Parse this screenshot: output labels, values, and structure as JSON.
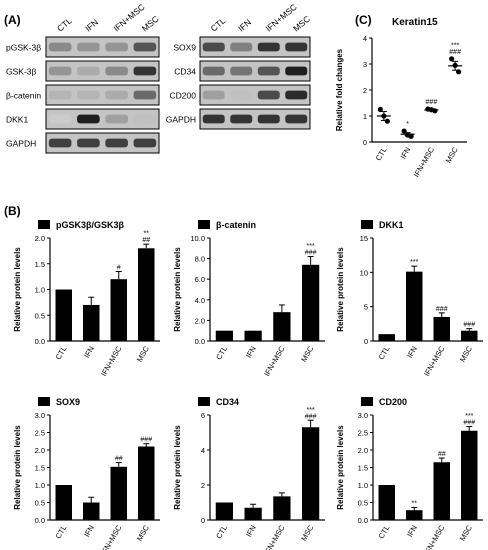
{
  "panel_labels": {
    "A": "(A)",
    "B": "(B)",
    "C": "(C)"
  },
  "blot_columns": [
    "CTL",
    "IFN",
    "IFN+MSC",
    "MSC"
  ],
  "blot_left": {
    "rows": [
      {
        "label": "pGSK-3β",
        "intensity": [
          0.45,
          0.4,
          0.4,
          0.7
        ]
      },
      {
        "label": "GSK-3β",
        "intensity": [
          0.4,
          0.3,
          0.45,
          0.85
        ]
      },
      {
        "label": "β-catenin",
        "intensity": [
          0.25,
          0.25,
          0.3,
          0.6
        ]
      },
      {
        "label": "DKK1",
        "intensity": [
          0.15,
          0.95,
          0.35,
          0.2
        ]
      },
      {
        "label": "GAPDH",
        "intensity": [
          0.8,
          0.8,
          0.8,
          0.8
        ]
      }
    ]
  },
  "blot_right": {
    "rows": [
      {
        "label": "SOX9",
        "intensity": [
          0.75,
          0.5,
          0.85,
          0.85
        ]
      },
      {
        "label": "CD34",
        "intensity": [
          0.6,
          0.55,
          0.7,
          0.95
        ]
      },
      {
        "label": "CD200",
        "intensity": [
          0.35,
          0.2,
          0.75,
          0.9
        ]
      },
      {
        "label": "GAPDH",
        "intensity": [
          0.85,
          0.85,
          0.85,
          0.85
        ]
      }
    ]
  },
  "chart_data": [
    {
      "id": "keratin15",
      "type": "scatter",
      "title": "Keratin15",
      "ylabel": "Relative fold changes",
      "categories": [
        "CTL",
        "IFN",
        "IFN+MSC",
        "MSC"
      ],
      "ylim": [
        0,
        4
      ],
      "yticks": [
        0.0,
        1.0,
        2.0,
        3.0,
        4.0
      ],
      "tick_labels": [
        "0",
        "1",
        "2",
        "3",
        "4"
      ],
      "means": [
        1.0,
        0.3,
        1.23,
        2.93
      ],
      "errors": [
        0.17,
        0.06,
        0.04,
        0.17
      ],
      "points": [
        [
          1.25,
          1.0,
          0.8
        ],
        [
          0.42,
          0.27,
          0.22
        ],
        [
          1.27,
          1.24,
          1.2
        ],
        [
          3.2,
          2.95,
          2.7
        ]
      ],
      "annotations": [
        "",
        "*",
        "###",
        "***\n###"
      ]
    },
    {
      "id": "pgsk",
      "type": "bar",
      "title": "pGSK3β/GSK3β",
      "ylabel": "Relative protein levels",
      "categories": [
        "CTL",
        "IFN",
        "IFN+MSC",
        "MSC"
      ],
      "values": [
        1.0,
        0.7,
        1.2,
        1.8
      ],
      "errors": [
        0,
        0.15,
        0.15,
        0.08
      ],
      "ylim": [
        0,
        2.0
      ],
      "yticks": [
        0.0,
        0.5,
        1.0,
        1.5,
        2.0
      ],
      "tick_labels": [
        "0.0",
        "0.5",
        "1.0",
        "1.5",
        "2.0"
      ],
      "annotations": [
        "",
        "",
        "#",
        "**\n##"
      ]
    },
    {
      "id": "bcat",
      "type": "bar",
      "title": "β-catenin",
      "ylabel": "Relative protein levels",
      "categories": [
        "CTL",
        "IFN",
        "IFN+MSC",
        "MSC"
      ],
      "values": [
        1.0,
        1.0,
        2.8,
        7.4
      ],
      "errors": [
        0,
        0,
        0.7,
        0.8
      ],
      "ylim": [
        0,
        10.0
      ],
      "yticks": [
        0,
        2,
        4,
        6,
        8,
        10
      ],
      "tick_labels": [
        "0.0",
        "2.0",
        "4.0",
        "6.0",
        "8.0",
        "10.0"
      ],
      "annotations": [
        "",
        "",
        "",
        "***\n###"
      ]
    },
    {
      "id": "dkk1",
      "type": "bar",
      "title": "DKK1",
      "ylabel": "Relative protein levels",
      "categories": [
        "CTL",
        "IFN",
        "IFN+MSC",
        "MSC"
      ],
      "values": [
        1.0,
        10.1,
        3.5,
        1.5
      ],
      "errors": [
        0,
        0.8,
        0.6,
        0.3
      ],
      "ylim": [
        0,
        15
      ],
      "yticks": [
        0,
        5,
        10,
        15
      ],
      "tick_labels": [
        "0",
        "5",
        "10",
        "15"
      ],
      "annotations": [
        "",
        "***",
        "###",
        "###"
      ]
    },
    {
      "id": "sox9",
      "type": "bar",
      "title": "SOX9",
      "ylabel": "Relative protein levels",
      "categories": [
        "CTL",
        "IFN",
        "IFN+MSC",
        "MSC"
      ],
      "values": [
        1.0,
        0.5,
        1.52,
        2.1
      ],
      "errors": [
        0,
        0.15,
        0.12,
        0.08
      ],
      "ylim": [
        0,
        3.0
      ],
      "yticks": [
        0,
        0.5,
        1.0,
        1.5,
        2.0,
        2.5,
        3.0
      ],
      "tick_labels": [
        "0.0",
        "0.5",
        "1.0",
        "1.5",
        "2.0",
        "2.5",
        "3.0"
      ],
      "annotations": [
        "",
        "",
        "##",
        "###"
      ]
    },
    {
      "id": "cd34",
      "type": "bar",
      "title": "CD34",
      "ylabel": "Relative protein levels",
      "categories": [
        "CTL",
        "IFN",
        "IFN+MSC",
        "MSC"
      ],
      "values": [
        1.0,
        0.7,
        1.35,
        5.3
      ],
      "errors": [
        0,
        0.2,
        0.2,
        0.4
      ],
      "ylim": [
        0,
        6
      ],
      "yticks": [
        0,
        2,
        4,
        6
      ],
      "tick_labels": [
        "0",
        "2",
        "4",
        "6"
      ],
      "annotations": [
        "",
        "",
        "",
        "***\n###"
      ]
    },
    {
      "id": "cd200",
      "type": "bar",
      "title": "CD200",
      "ylabel": "Relative protein levels",
      "categories": [
        "CTL",
        "IFN",
        "IFN+MSC",
        "MSC"
      ],
      "values": [
        1.0,
        0.28,
        1.65,
        2.55
      ],
      "errors": [
        0,
        0.08,
        0.12,
        0.12
      ],
      "ylim": [
        0,
        3.0
      ],
      "yticks": [
        0,
        0.5,
        1.0,
        1.5,
        2.0,
        2.5,
        3.0
      ],
      "tick_labels": [
        "0.0",
        "0.5",
        "1.0",
        "1.5",
        "2.0",
        "2.5",
        "3.0"
      ],
      "annotations": [
        "",
        "**",
        "##",
        "***\n###"
      ]
    }
  ]
}
